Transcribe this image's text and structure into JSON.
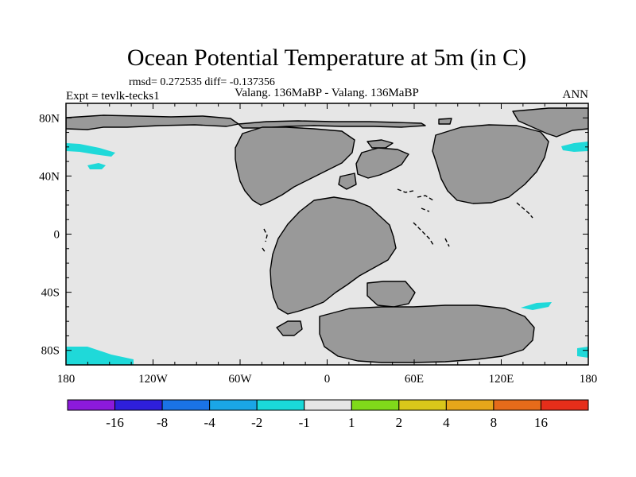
{
  "title": "Ocean Potential Temperature at 5m (in C)",
  "stats": "rmsd= 0.272535 diff= -0.137356",
  "experiment": "Expt = tevlk-tecks1",
  "subtitle": "Valang. 136MaBP - Valang. 136MaBP",
  "season": "ANN",
  "map": {
    "lon_ticks": [
      "180",
      "120W",
      "60W",
      "0",
      "60E",
      "120E",
      "180"
    ],
    "lat_ticks": [
      "80N",
      "40N",
      "0",
      "40S",
      "80S"
    ],
    "lon_values": [
      -180,
      -120,
      -60,
      0,
      60,
      120,
      180
    ],
    "lat_values": [
      80,
      40,
      0,
      -40,
      -80
    ],
    "lon_range": [
      -180,
      180
    ],
    "lat_range": [
      -90,
      90
    ],
    "colors": {
      "ocean": "#e6e6e6",
      "land": "#999999",
      "anomaly": "#1fd9d9"
    }
  },
  "colorbar": {
    "labels": [
      "-16",
      "-8",
      "-4",
      "-2",
      "-1",
      "1",
      "2",
      "4",
      "8",
      "16"
    ],
    "colors": [
      "#8c1adb",
      "#2e1fdb",
      "#1a73e6",
      "#1aa6e6",
      "#1ad9d9",
      "#e6e6e6",
      "#80d91a",
      "#d9c71a",
      "#e6a61a",
      "#e66b1a",
      "#e62e1a"
    ]
  }
}
